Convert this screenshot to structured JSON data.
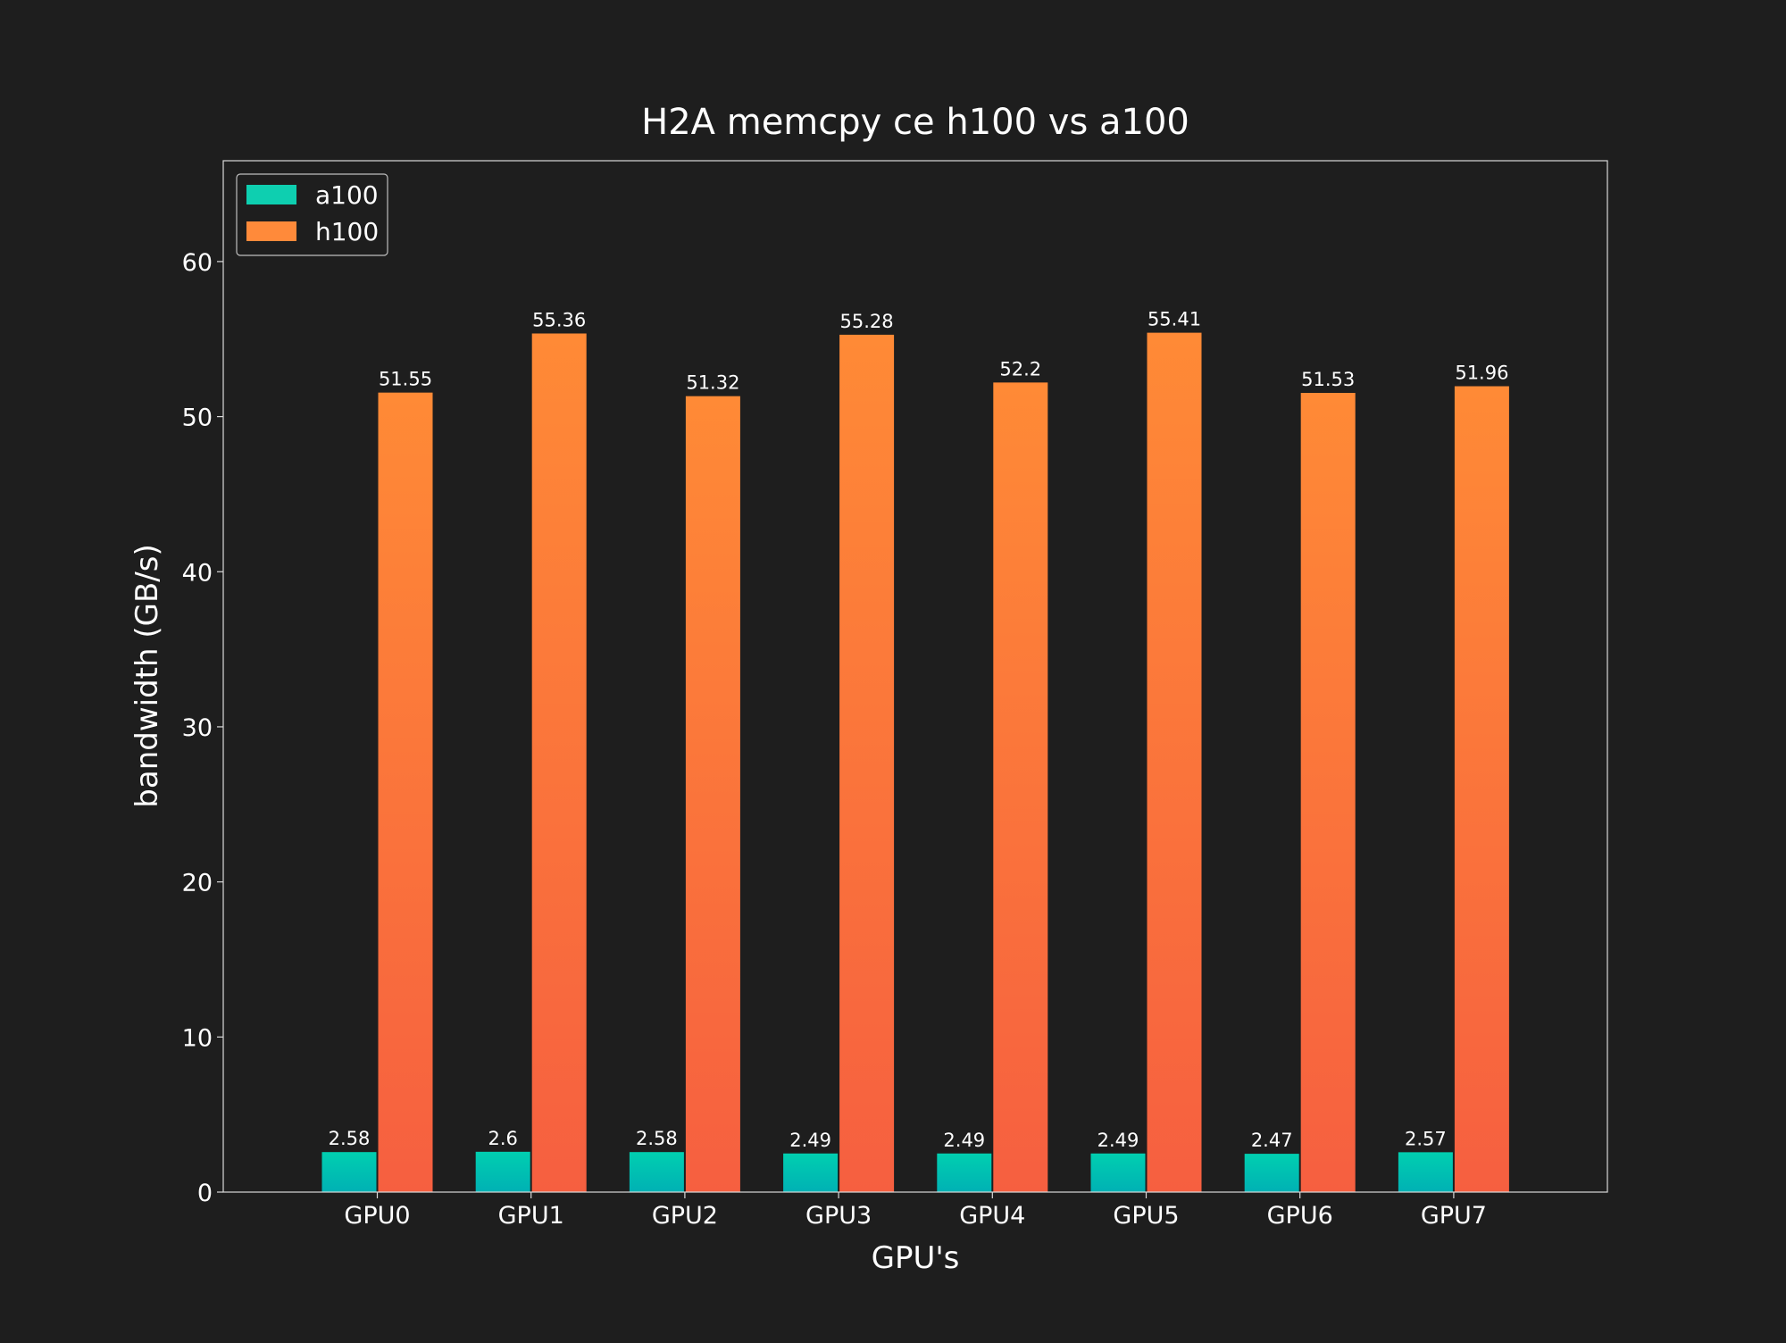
{
  "chart_data": {
    "type": "bar",
    "title": "H2A memcpy ce h100 vs a100",
    "xlabel": "GPU's",
    "ylabel": "bandwidth (GB/s)",
    "categories": [
      "GPU0",
      "GPU1",
      "GPU2",
      "GPU3",
      "GPU4",
      "GPU5",
      "GPU6",
      "GPU7"
    ],
    "series": [
      {
        "name": "a100",
        "values": [
          2.58,
          2.6,
          2.58,
          2.49,
          2.49,
          2.49,
          2.47,
          2.57
        ],
        "value_labels": [
          "2.58",
          "2.6",
          "2.58",
          "2.49",
          "2.49",
          "2.49",
          "2.47",
          "2.57"
        ],
        "color_top": "#00cfb0",
        "color_bottom": "#00b1b4",
        "legend_color": "#0ecfb0"
      },
      {
        "name": "h100",
        "values": [
          51.55,
          55.36,
          51.32,
          55.28,
          52.2,
          55.41,
          51.53,
          51.96
        ],
        "value_labels": [
          "51.55",
          "55.36",
          "51.32",
          "55.28",
          "52.2",
          "55.41",
          "51.53",
          "51.96"
        ],
        "color_top": "#ff8a36",
        "color_bottom": "#f65f40",
        "legend_color": "#ff8a3a"
      }
    ],
    "ylim": [
      0,
      66.5
    ],
    "yticks": [
      0,
      10,
      20,
      30,
      40,
      50,
      60
    ],
    "ytick_labels": [
      "0",
      "10",
      "20",
      "30",
      "40",
      "50",
      "60"
    ],
    "grid": false,
    "legend_position": "upper left",
    "background": "#1e1e1e",
    "frame_color": "#d9d9d9"
  }
}
